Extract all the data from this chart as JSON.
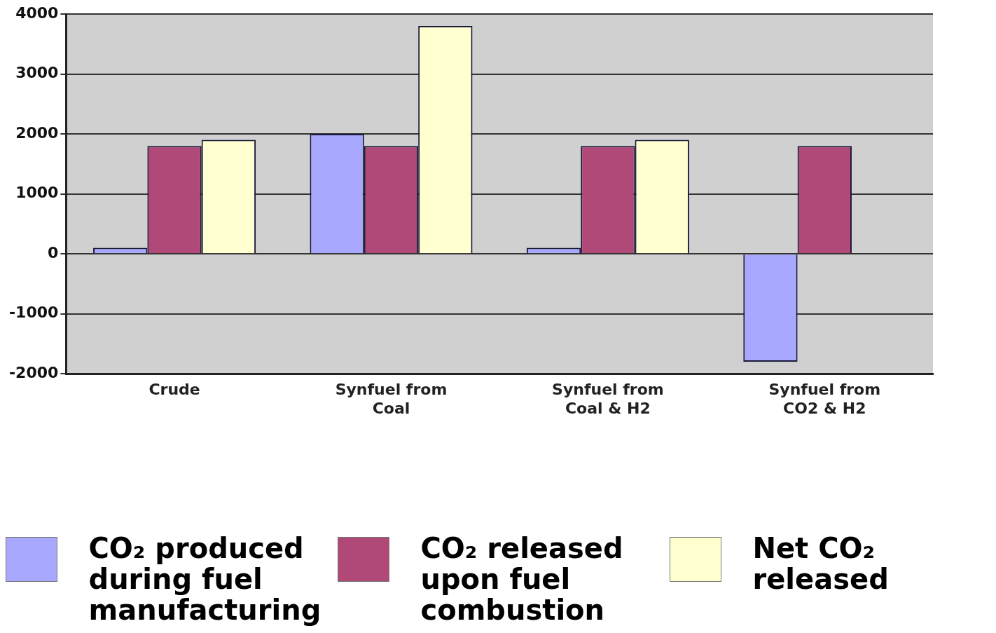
{
  "chart_data": {
    "type": "bar",
    "categories": [
      "Crude",
      "Synfuel from Coal",
      "Synfuel from Coal & H2",
      "Synfuel from CO2 & H2"
    ],
    "series": [
      {
        "name": "CO₂ produced during fuel manufacturing",
        "color": "#a8a8ff",
        "values": [
          100,
          2000,
          100,
          -1800
        ]
      },
      {
        "name": "CO₂ released upon fuel combustion",
        "color": "#b04878",
        "values": [
          1800,
          1800,
          1800,
          1800
        ]
      },
      {
        "name": "Net CO₂ released",
        "color": "#ffffd0",
        "values": [
          1900,
          3800,
          1900,
          0
        ]
      }
    ],
    "ylim": [
      -2000,
      4000
    ],
    "yticks": [
      -2000,
      -1000,
      0,
      1000,
      2000,
      3000,
      4000
    ],
    "grid": "y",
    "legend": "bottom"
  }
}
